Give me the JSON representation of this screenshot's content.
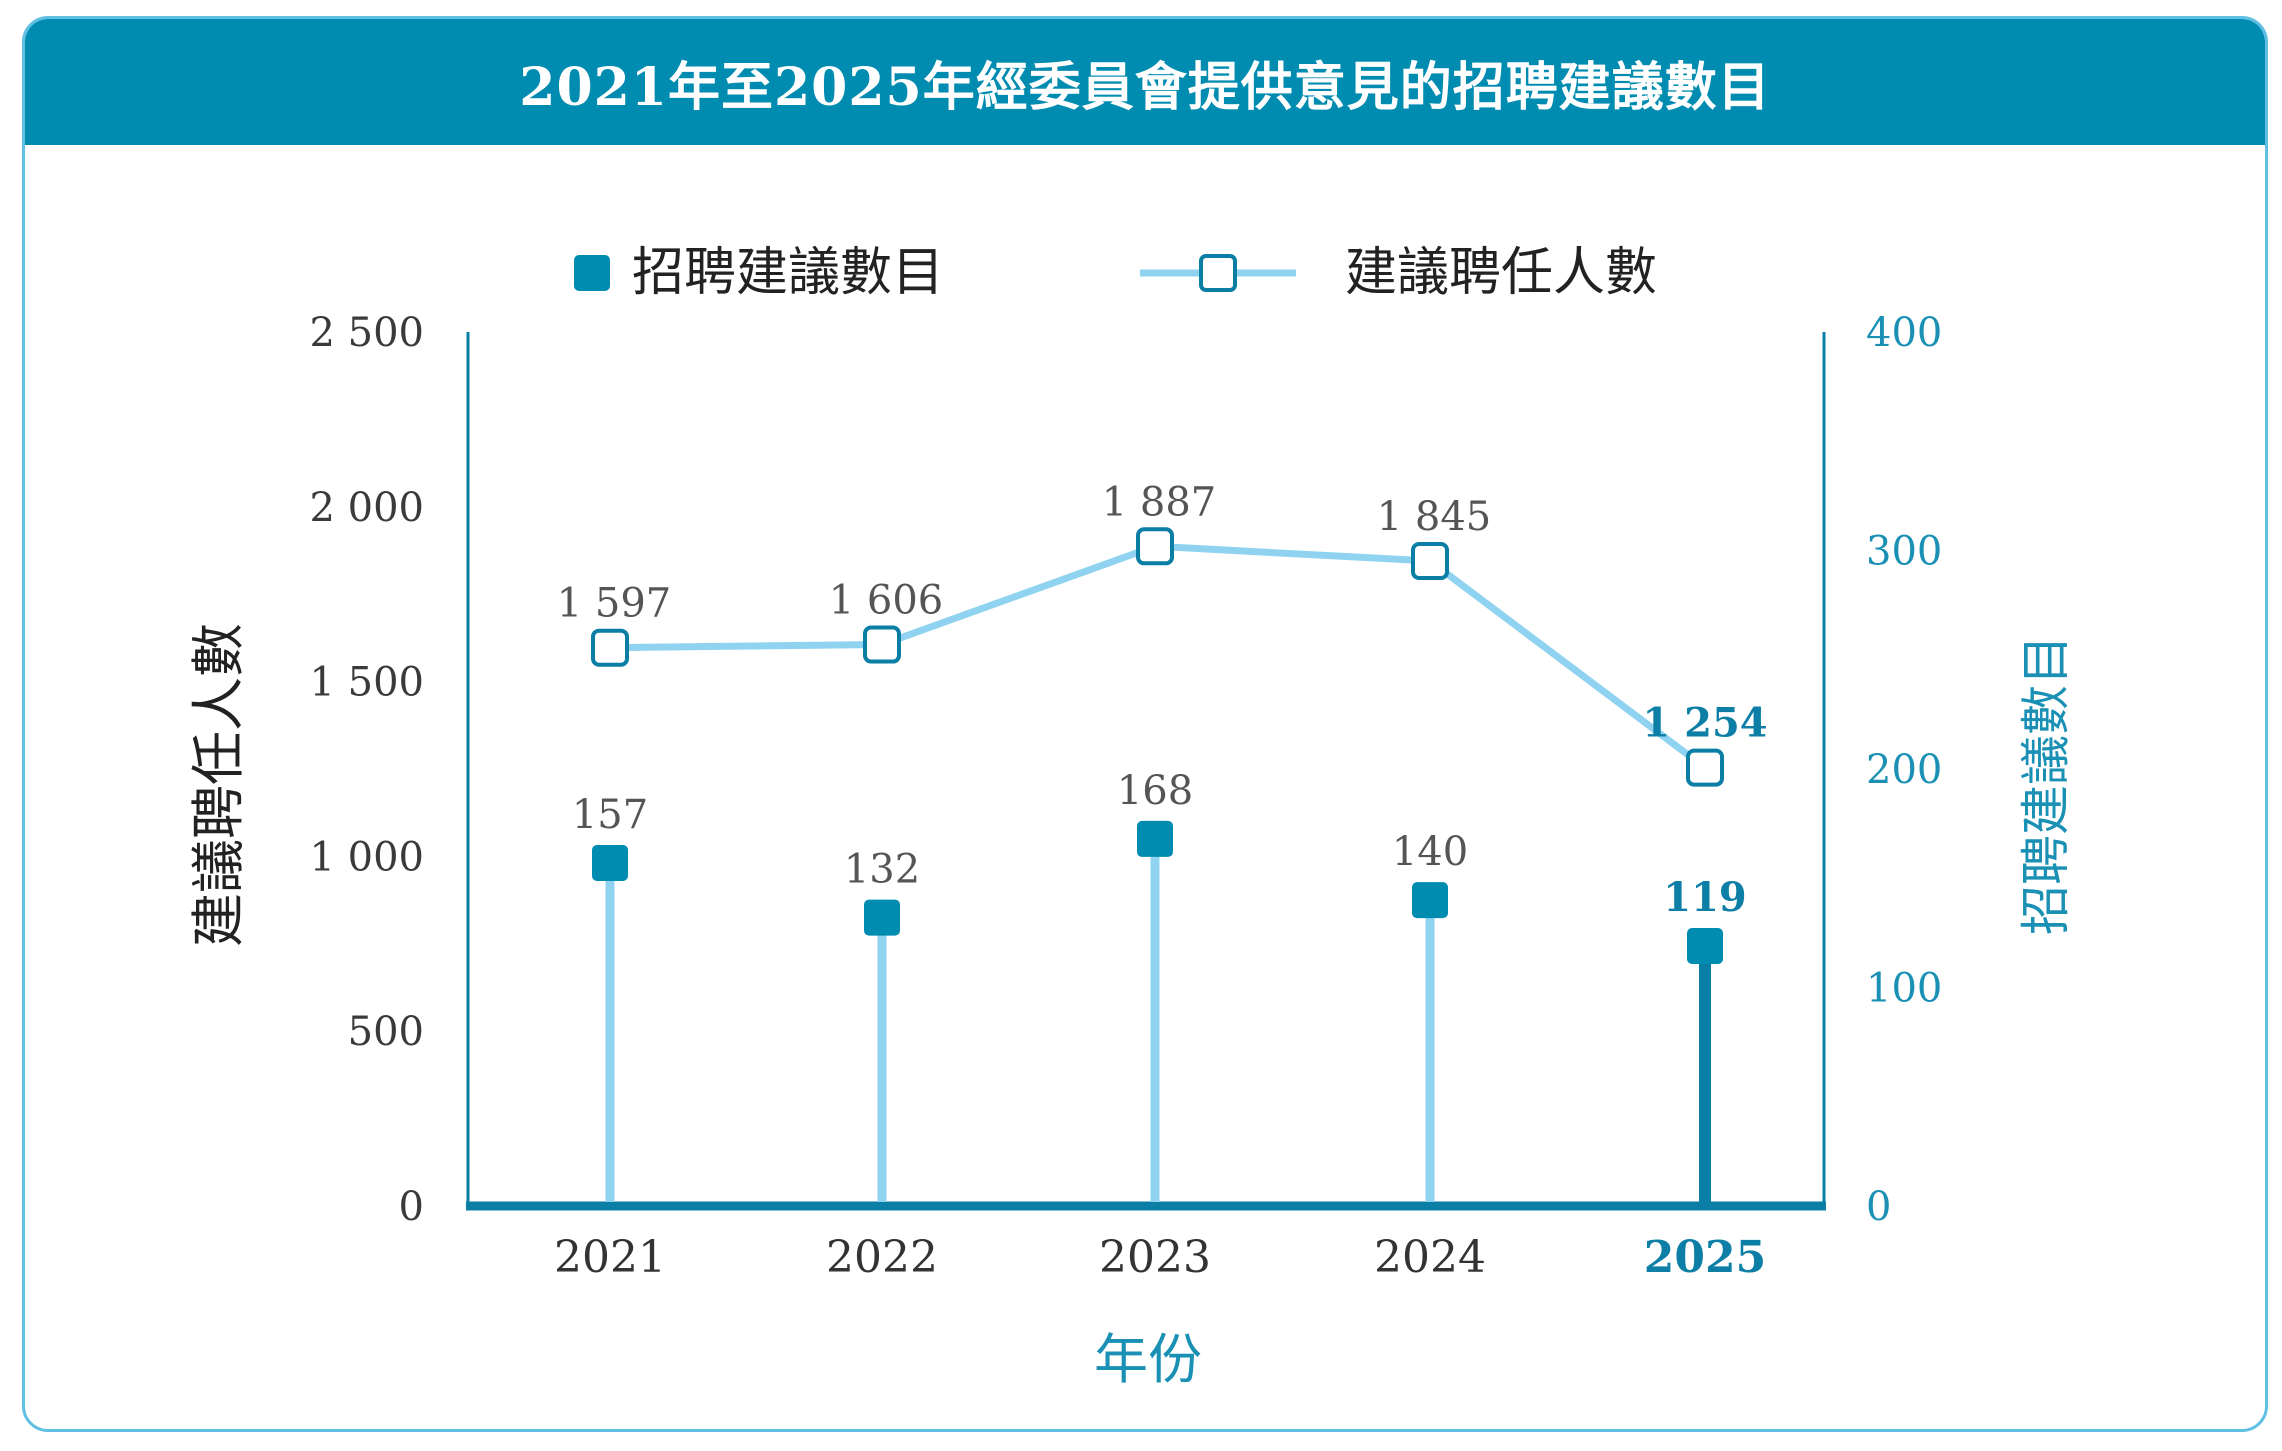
{
  "title": "2021年至2025年經委員會提供意見的招聘建議數目",
  "colors": {
    "header": "#008bb0",
    "bar": "#008bb0",
    "bar_stem": "#8fd3f0",
    "bar_stem_last": "#0a7ea4",
    "line": "#8fd3f0",
    "line_marker": "#0a7ea4",
    "axis": "#0a7ea4"
  },
  "legend": {
    "bars": "招聘建議數目",
    "line": "建議聘任人數"
  },
  "chart_data": {
    "type": "bar+line",
    "categories": [
      "2021",
      "2022",
      "2023",
      "2024",
      "2025"
    ],
    "series": [
      {
        "name": "招聘建議數目",
        "type": "lollipop",
        "axis": "right",
        "values": [
          157,
          132,
          168,
          140,
          119
        ],
        "labels": [
          "157",
          "132",
          "168",
          "140",
          "119"
        ]
      },
      {
        "name": "建議聘任人數",
        "type": "line",
        "axis": "left",
        "values": [
          1597,
          1606,
          1887,
          1845,
          1254
        ],
        "labels": [
          "1 597",
          "1 606",
          "1 887",
          "1 845",
          "1 254"
        ]
      }
    ],
    "xlabel": "年份",
    "ylabel_left": "建議聘任人數",
    "ylabel_right": "招聘建議數目",
    "ylim_left": [
      0,
      2500
    ],
    "ylim_right": [
      0,
      400
    ],
    "yticks_left": [
      "0",
      "500",
      "1 000",
      "1 500",
      "2 000",
      "2 500"
    ],
    "yticks_right": [
      "0",
      "100",
      "200",
      "300",
      "400"
    ],
    "legend_position": "top-center",
    "grid": false
  }
}
